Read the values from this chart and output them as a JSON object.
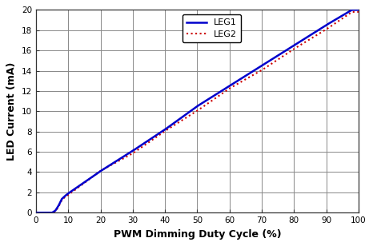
{
  "xlabel": "PWM Dimming Duty Cycle (%)",
  "ylabel": "LED Current (mA)",
  "xlim": [
    0,
    100
  ],
  "ylim": [
    0,
    20
  ],
  "xticks": [
    0,
    10,
    20,
    30,
    40,
    50,
    60,
    70,
    80,
    90,
    100
  ],
  "yticks": [
    0,
    2,
    4,
    6,
    8,
    10,
    12,
    14,
    16,
    18,
    20
  ],
  "leg1_kp_x": [
    0,
    5,
    6,
    7,
    8,
    9,
    10,
    20,
    30,
    40,
    50,
    60,
    70,
    80,
    90,
    98,
    100
  ],
  "leg1_kp_y": [
    0,
    0,
    0.2,
    0.7,
    1.35,
    1.65,
    1.9,
    4.1,
    6.1,
    8.2,
    10.5,
    12.5,
    14.5,
    16.5,
    18.5,
    20.0,
    20.0
  ],
  "leg2_kp_x": [
    0,
    5,
    6,
    7,
    8,
    9,
    10,
    20,
    30,
    40,
    50,
    60,
    70,
    80,
    90,
    98,
    100
  ],
  "leg2_kp_y": [
    0,
    0,
    0.1,
    0.6,
    1.25,
    1.55,
    1.75,
    4.1,
    5.9,
    8.0,
    10.1,
    12.2,
    14.1,
    16.1,
    18.1,
    19.8,
    19.8
  ],
  "leg1_color": "#0000cc",
  "leg2_color": "#cc0000",
  "leg1_label": "LEG1",
  "leg2_label": "LEG2",
  "leg1_linewidth": 1.8,
  "leg2_linewidth": 1.5,
  "fig_bg": "#ffffff",
  "plot_bg": "#ffffff",
  "grid_color": "#888888",
  "spine_color": "#333333",
  "tick_fontsize": 7.5,
  "label_fontsize": 9,
  "legend_fontsize": 8
}
